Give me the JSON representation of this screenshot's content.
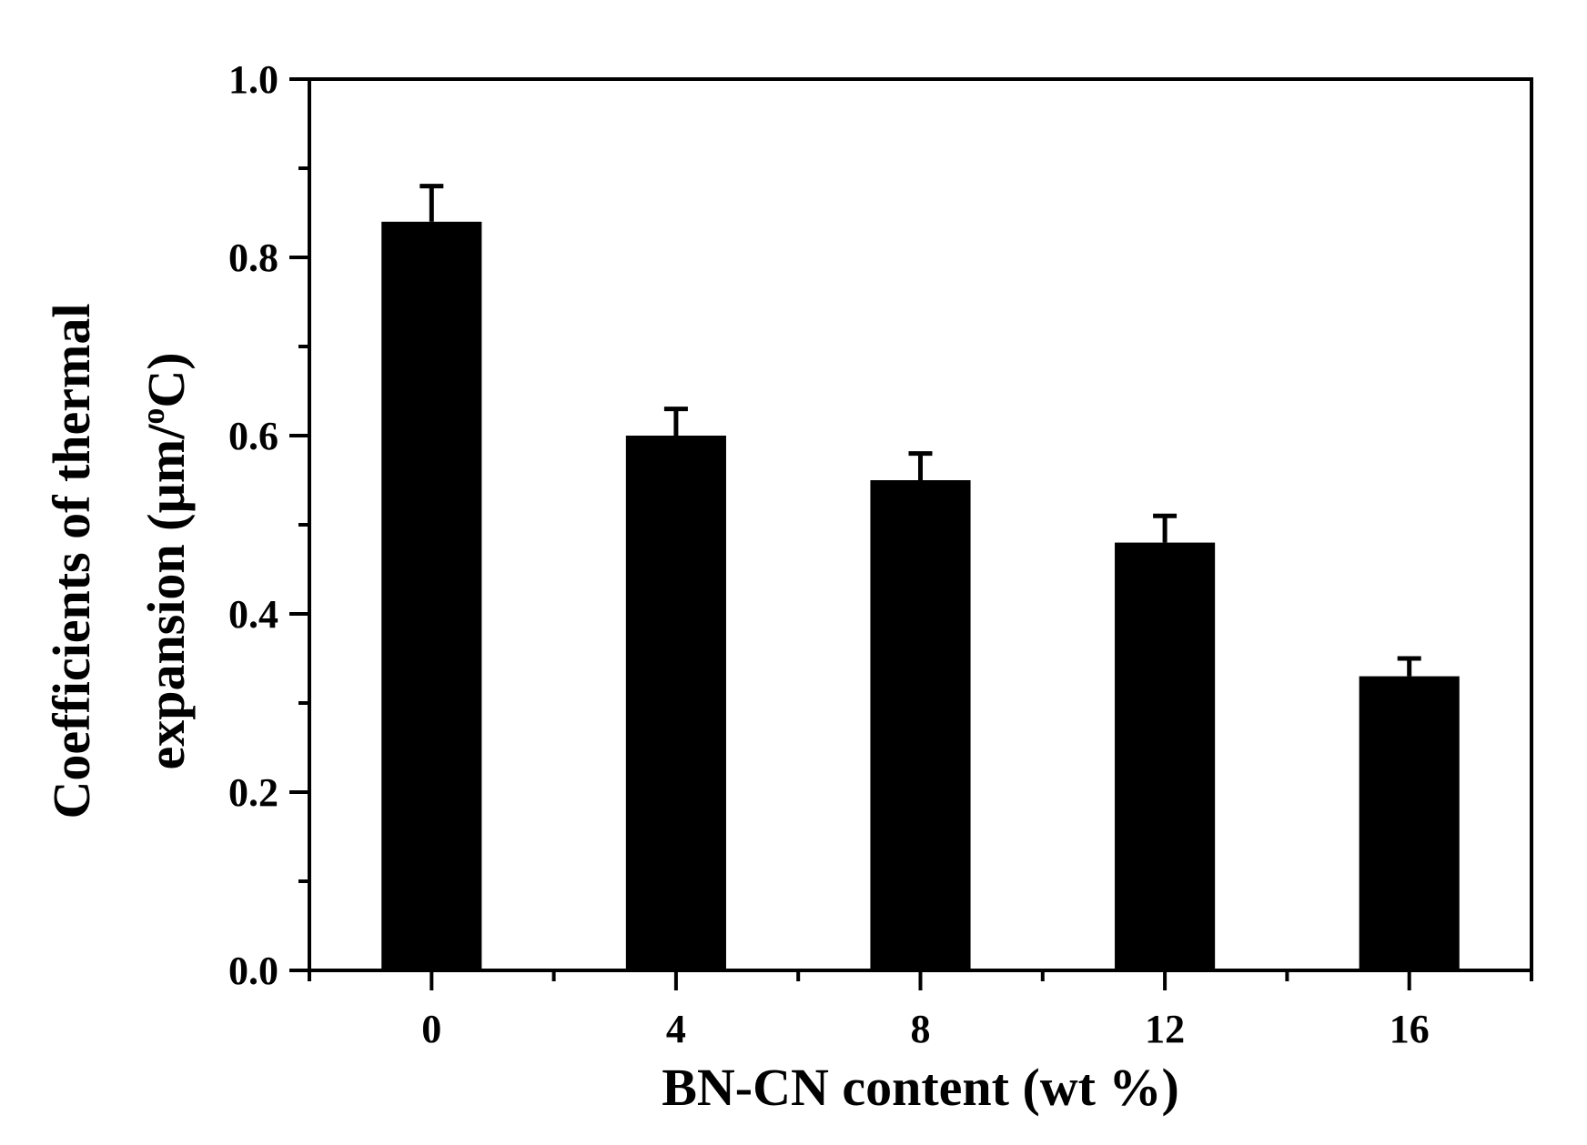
{
  "chart_data": {
    "type": "bar",
    "xlabel": "BN-CN content (wt %)",
    "ylabel_line1": "Coefficients of thermal",
    "ylabel_line2": "expansion (µm/",
    "ylabel_sup": "o",
    "ylabel_end": "C)",
    "categories": [
      "0",
      "4",
      "8",
      "12",
      "16"
    ],
    "x": [
      0,
      4,
      8,
      12,
      16
    ],
    "values": [
      0.84,
      0.6,
      0.55,
      0.48,
      0.33
    ],
    "errors": [
      0.04,
      0.03,
      0.03,
      0.03,
      0.02
    ],
    "xlim": [
      -2,
      18
    ],
    "ylim": [
      0.0,
      1.0
    ],
    "yticks": [
      "0.0",
      "0.2",
      "0.4",
      "0.6",
      "0.8",
      "1.0"
    ],
    "bar_color": "#000000",
    "grid": false,
    "legend": "none"
  }
}
